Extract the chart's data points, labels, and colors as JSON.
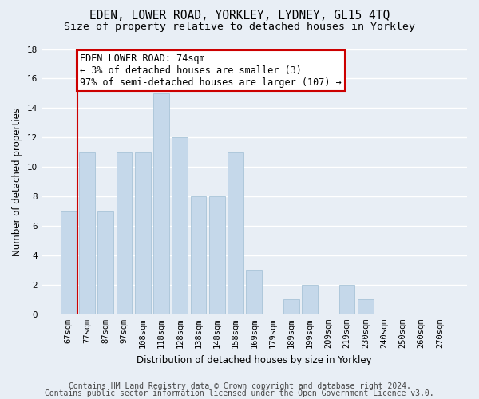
{
  "title": "EDEN, LOWER ROAD, YORKLEY, LYDNEY, GL15 4TQ",
  "subtitle": "Size of property relative to detached houses in Yorkley",
  "xlabel": "Distribution of detached houses by size in Yorkley",
  "ylabel": "Number of detached properties",
  "categories": [
    "67sqm",
    "77sqm",
    "87sqm",
    "97sqm",
    "108sqm",
    "118sqm",
    "128sqm",
    "138sqm",
    "148sqm",
    "158sqm",
    "169sqm",
    "179sqm",
    "189sqm",
    "199sqm",
    "209sqm",
    "219sqm",
    "230sqm",
    "240sqm",
    "250sqm",
    "260sqm",
    "270sqm"
  ],
  "values": [
    7,
    11,
    7,
    11,
    11,
    15,
    12,
    8,
    8,
    11,
    3,
    0,
    1,
    2,
    0,
    2,
    1,
    0,
    0,
    0,
    0
  ],
  "bar_color": "#c5d8ea",
  "bar_edge_color": "#a8c4d8",
  "vline_x": 0.5,
  "vline_color": "#cc0000",
  "annotation_text": "EDEN LOWER ROAD: 74sqm\n← 3% of detached houses are smaller (3)\n97% of semi-detached houses are larger (107) →",
  "annotation_box_color": "#ffffff",
  "annotation_box_edge": "#cc0000",
  "ylim": [
    0,
    18
  ],
  "yticks": [
    0,
    2,
    4,
    6,
    8,
    10,
    12,
    14,
    16,
    18
  ],
  "footer1": "Contains HM Land Registry data © Crown copyright and database right 2024.",
  "footer2": "Contains public sector information licensed under the Open Government Licence v3.0.",
  "bg_color": "#e8eef5",
  "plot_bg_color": "#e8eef5",
  "grid_color": "#ffffff",
  "title_fontsize": 10.5,
  "subtitle_fontsize": 9.5,
  "axis_label_fontsize": 8.5,
  "tick_fontsize": 7.5,
  "annotation_fontsize": 8.5,
  "footer_fontsize": 7.0
}
